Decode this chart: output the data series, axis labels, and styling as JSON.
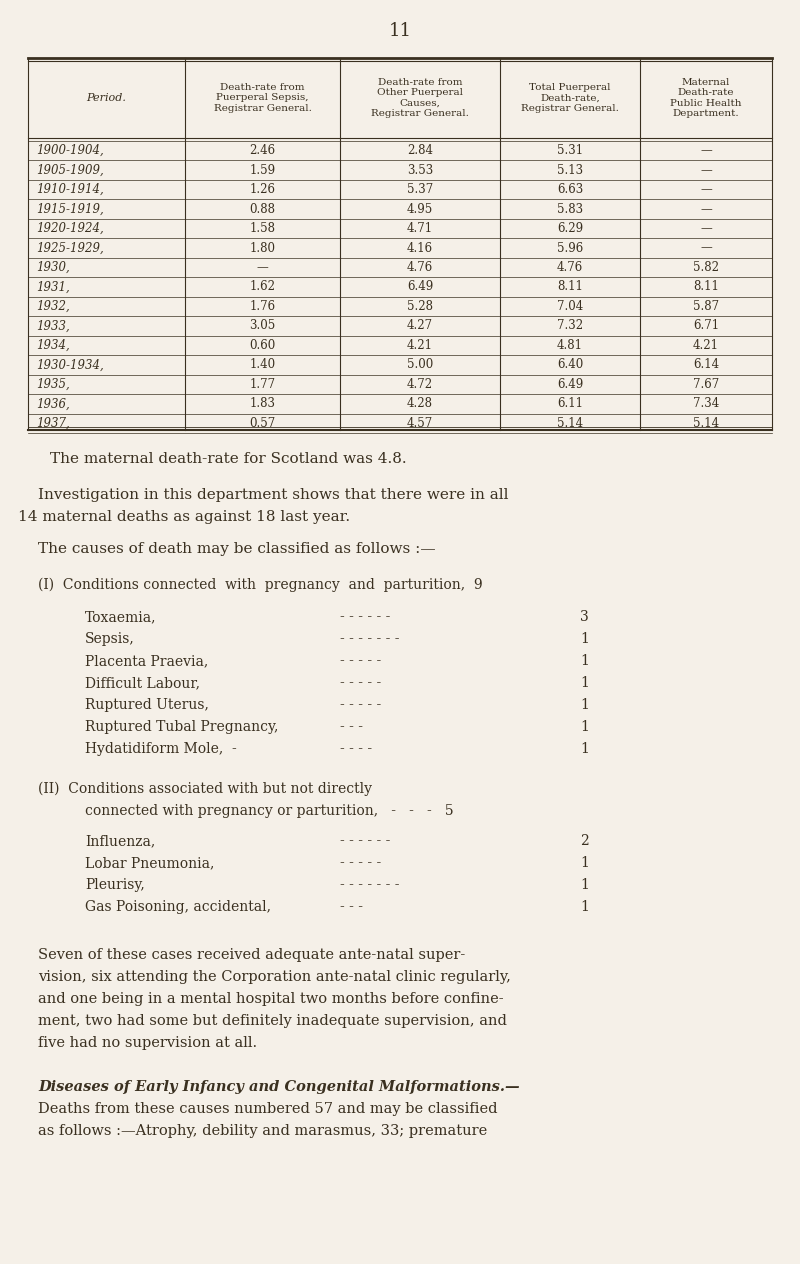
{
  "page_number": "11",
  "bg_color": "#f5f0e8",
  "text_color": "#3a3020",
  "table": {
    "headers": [
      "Period.",
      "Death-rate from\nPuerperal Sepsis,\nRegistrar General.",
      "Death-rate from\nOther Puerperal\nCauses,\nRegistrar General.",
      "Total Puerperal\nDeath-rate,\nRegistrar General.",
      "Maternal\nDeath-rate\nPublic Health\nDepartment."
    ],
    "rows": [
      [
        "1900-1904,",
        "2.46",
        "2.84",
        "5.31",
        "—"
      ],
      [
        "1905-1909,",
        "1.59",
        "3.53",
        "5.13",
        "—"
      ],
      [
        "1910-1914,",
        "1.26",
        "5.37",
        "6.63",
        "—"
      ],
      [
        "1915-1919,",
        "0.88",
        "4.95",
        "5.83",
        "—"
      ],
      [
        "1920-1924,",
        "1.58",
        "4.71",
        "6.29",
        "—"
      ],
      [
        "1925-1929,",
        "1.80",
        "4.16",
        "5.96",
        "—"
      ],
      [
        "1930,",
        "—",
        "4.76",
        "4.76",
        "5.82"
      ],
      [
        "1931,",
        "1.62",
        "6.49",
        "8.11",
        "8.11"
      ],
      [
        "1932,",
        "1.76",
        "5.28",
        "7.04",
        "5.87"
      ],
      [
        "1933,",
        "3.05",
        "4.27",
        "7.32",
        "6.71"
      ],
      [
        "1934,",
        "0.60",
        "4.21",
        "4.81",
        "4.21"
      ],
      [
        "1930-1934,",
        "1.40",
        "5.00",
        "6.40",
        "6.14"
      ],
      [
        "1935,",
        "1.77",
        "4.72",
        "6.49",
        "7.67"
      ],
      [
        "1936,",
        "1.83",
        "4.28",
        "6.11",
        "7.34"
      ],
      [
        "1937,",
        "0.57",
        "4.57",
        "5.14",
        "5.14"
      ]
    ]
  },
  "paragraph1": "The maternal death-rate for Scotland was 4.8.",
  "paragraph2a": "Investigation in this department shows that there were in all",
  "paragraph2b": "14 maternal deaths as against 18 last year.",
  "paragraph3": "The causes of death may be classified as follows :—",
  "section1_header": "(I)  Conditions connected  with  pregnancy  and  parturition,  9",
  "section1_items": [
    [
      "Toxaemia,",
      "- - - - - -",
      "3"
    ],
    [
      "Sepsis,",
      "- - - - - - -",
      "1"
    ],
    [
      "Placenta Praevia,",
      "- - - - -",
      "1"
    ],
    [
      "Difficult Labour,",
      "- - - - -",
      "1"
    ],
    [
      "Ruptured Uterus,",
      "- - - - -",
      "1"
    ],
    [
      "Ruptured Tubal Pregnancy,",
      "- - -",
      "1"
    ],
    [
      "Hydatidiform Mole,  -",
      "- - - -",
      "1"
    ]
  ],
  "section2_header_line1": "(II)  Conditions associated with but not directly",
  "section2_header_line2": "connected with pregnancy or parturition,   -   -   -   5",
  "section2_items": [
    [
      "Influenza,",
      "- - - - - -",
      "2"
    ],
    [
      "Lobar Pneumonia,",
      "- - - - -",
      "1"
    ],
    [
      "Pleurisy,",
      "- - - - - - -",
      "1"
    ],
    [
      "Gas Poisoning, accidental,",
      "- - -",
      "1"
    ]
  ],
  "paragraph4_lines": [
    "Seven of these cases received adequate ante-natal super-",
    "vision, six attending the Corporation ante-natal clinic regularly,",
    "and one being in a mental hospital two months before confine-",
    "ment, two had some but definitely inadequate supervision, and",
    "five had no supervision at all."
  ],
  "paragraph5_italic": "Diseases of Early Infancy and Congenital Malformations.—",
  "paragraph5_lines": [
    "Deaths from these causes numbered 57 and may be classified",
    "as follows :—Atrophy, debility and marasmus, 33; premature"
  ]
}
